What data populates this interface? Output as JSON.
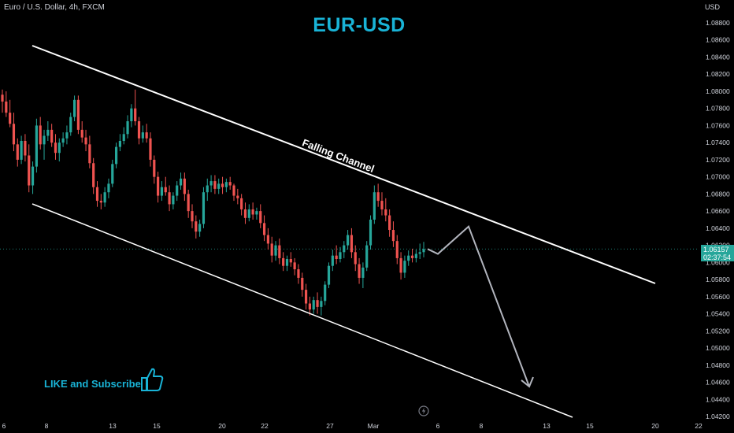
{
  "header": {
    "symbol_text": "Euro / U.S. Dollar, 4h, FXCM",
    "title": "EUR-USD",
    "cta": "LIKE and Subscribe",
    "currency": "USD"
  },
  "price_tag": {
    "price": "1.06157",
    "countdown": "02:37:54"
  },
  "chart_data": {
    "type": "candlestick",
    "title": "EUR-USD",
    "symbol": "Euro / U.S. Dollar, 4h, FXCM",
    "ylabel": "USD",
    "ylim": [
      1.041,
      1.0904
    ],
    "y_ticks": [
      "1.08800",
      "1.08600",
      "1.08400",
      "1.08200",
      "1.08000",
      "1.07800",
      "1.07600",
      "1.07400",
      "1.07200",
      "1.07000",
      "1.06800",
      "1.06600",
      "1.06400",
      "1.06200",
      "1.06000",
      "1.05800",
      "1.05600",
      "1.05400",
      "1.05200",
      "1.05000",
      "1.04800",
      "1.04600",
      "1.04400",
      "1.04200"
    ],
    "x_ticks": [
      "6",
      "8",
      "13",
      "15",
      "20",
      "22",
      "27",
      "Mar",
      "6",
      "8",
      "13",
      "15",
      "20",
      "22"
    ],
    "last_price": 1.06157,
    "colors": {
      "up": "#26a69a",
      "down": "#ef5350",
      "channel": "#ffffff",
      "projection": "#b2b5be"
    },
    "candles": [
      [
        1.0796,
        1.0802,
        1.0775,
        1.0788
      ],
      [
        1.0788,
        1.08,
        1.077,
        1.0775
      ],
      [
        1.0775,
        1.079,
        1.0758,
        1.0762
      ],
      [
        1.0762,
        1.0775,
        1.073,
        1.0738
      ],
      [
        1.0738,
        1.0745,
        1.0712,
        1.072
      ],
      [
        1.072,
        1.0748,
        1.0715,
        1.0742
      ],
      [
        1.0742,
        1.075,
        1.0718,
        1.0725
      ],
      [
        1.0725,
        1.0738,
        1.0682,
        1.069
      ],
      [
        1.069,
        1.0718,
        1.068,
        1.0712
      ],
      [
        1.0712,
        1.0768,
        1.0705,
        1.076
      ],
      [
        1.076,
        1.077,
        1.0732,
        1.0738
      ],
      [
        1.0738,
        1.0755,
        1.072,
        1.0748
      ],
      [
        1.0748,
        1.0765,
        1.0742,
        1.0755
      ],
      [
        1.0755,
        1.0762,
        1.0735,
        1.074
      ],
      [
        1.074,
        1.075,
        1.072,
        1.0728
      ],
      [
        1.0728,
        1.0745,
        1.0718,
        1.074
      ],
      [
        1.074,
        1.0752,
        1.0735,
        1.0745
      ],
      [
        1.0745,
        1.076,
        1.0738,
        1.0752
      ],
      [
        1.0752,
        1.0775,
        1.0748,
        1.077
      ],
      [
        1.077,
        1.0795,
        1.0765,
        1.079
      ],
      [
        1.079,
        1.0795,
        1.075,
        1.0755
      ],
      [
        1.0755,
        1.0765,
        1.074,
        1.0746
      ],
      [
        1.0746,
        1.0755,
        1.073,
        1.0738
      ],
      [
        1.0738,
        1.0748,
        1.071,
        1.0716
      ],
      [
        1.0716,
        1.0722,
        1.068,
        1.0688
      ],
      [
        1.0688,
        1.0695,
        1.0665,
        1.0672
      ],
      [
        1.0672,
        1.068,
        1.0662,
        1.067
      ],
      [
        1.067,
        1.0688,
        1.0665,
        1.0682
      ],
      [
        1.0682,
        1.0698,
        1.0675,
        1.0692
      ],
      [
        1.0692,
        1.072,
        1.0688,
        1.0715
      ],
      [
        1.0715,
        1.074,
        1.071,
        1.0735
      ],
      [
        1.0735,
        1.075,
        1.073,
        1.0742
      ],
      [
        1.0742,
        1.0758,
        1.0738,
        1.075
      ],
      [
        1.075,
        1.0772,
        1.0745,
        1.0765
      ],
      [
        1.0765,
        1.0785,
        1.0758,
        1.078
      ],
      [
        1.078,
        1.0802,
        1.076,
        1.0765
      ],
      [
        1.0765,
        1.077,
        1.0738,
        1.0745
      ],
      [
        1.0745,
        1.076,
        1.074,
        1.0752
      ],
      [
        1.0752,
        1.0762,
        1.074,
        1.0745
      ],
      [
        1.0745,
        1.0752,
        1.0712,
        1.072
      ],
      [
        1.072,
        1.0725,
        1.0692,
        1.07
      ],
      [
        1.07,
        1.0706,
        1.067,
        1.0678
      ],
      [
        1.0678,
        1.0695,
        1.0672,
        1.0688
      ],
      [
        1.0688,
        1.07,
        1.0678,
        1.0682
      ],
      [
        1.0682,
        1.069,
        1.066,
        1.0668
      ],
      [
        1.0668,
        1.0682,
        1.0662,
        1.0678
      ],
      [
        1.0678,
        1.0695,
        1.0672,
        1.069
      ],
      [
        1.069,
        1.0705,
        1.0685,
        1.0698
      ],
      [
        1.0698,
        1.0705,
        1.0672,
        1.068
      ],
      [
        1.068,
        1.0685,
        1.0652,
        1.066
      ],
      [
        1.066,
        1.0668,
        1.064,
        1.0648
      ],
      [
        1.0648,
        1.0655,
        1.0628,
        1.0636
      ],
      [
        1.0636,
        1.065,
        1.063,
        1.0645
      ],
      [
        1.0645,
        1.0688,
        1.064,
        1.0682
      ],
      [
        1.0682,
        1.0698,
        1.0672,
        1.069
      ],
      [
        1.069,
        1.0702,
        1.0682,
        1.0695
      ],
      [
        1.0695,
        1.0702,
        1.068,
        1.0686
      ],
      [
        1.0686,
        1.0698,
        1.068,
        1.0692
      ],
      [
        1.0692,
        1.07,
        1.068,
        1.0688
      ],
      [
        1.0688,
        1.0698,
        1.0682,
        1.0694
      ],
      [
        1.0694,
        1.07,
        1.0685,
        1.069
      ],
      [
        1.069,
        1.0692,
        1.0672,
        1.0678
      ],
      [
        1.0678,
        1.0686,
        1.0668,
        1.0675
      ],
      [
        1.0675,
        1.068,
        1.0655,
        1.0662
      ],
      [
        1.0662,
        1.067,
        1.0645,
        1.0652
      ],
      [
        1.0652,
        1.0668,
        1.0648,
        1.0662
      ],
      [
        1.0662,
        1.067,
        1.065,
        1.0656
      ],
      [
        1.0656,
        1.0664,
        1.065,
        1.066
      ],
      [
        1.066,
        1.0668,
        1.064,
        1.0646
      ],
      [
        1.0646,
        1.0655,
        1.0625,
        1.0632
      ],
      [
        1.0632,
        1.064,
        1.0615,
        1.0622
      ],
      [
        1.0622,
        1.063,
        1.06,
        1.0608
      ],
      [
        1.0608,
        1.0625,
        1.0602,
        1.062
      ],
      [
        1.062,
        1.0628,
        1.0598,
        1.0605
      ],
      [
        1.0605,
        1.0612,
        1.059,
        1.0596
      ],
      [
        1.0596,
        1.0608,
        1.059,
        1.0604
      ],
      [
        1.0604,
        1.0612,
        1.0595,
        1.06
      ],
      [
        1.06,
        1.0605,
        1.0585,
        1.0592
      ],
      [
        1.0592,
        1.0598,
        1.0575,
        1.0582
      ],
      [
        1.0582,
        1.0588,
        1.056,
        1.0568
      ],
      [
        1.0568,
        1.0575,
        1.0545,
        1.0552
      ],
      [
        1.0552,
        1.056,
        1.0538,
        1.0545
      ],
      [
        1.0545,
        1.056,
        1.054,
        1.0556
      ],
      [
        1.0556,
        1.0565,
        1.054,
        1.0548
      ],
      [
        1.0548,
        1.056,
        1.0538,
        1.0555
      ],
      [
        1.0555,
        1.0578,
        1.055,
        1.0574
      ],
      [
        1.0574,
        1.06,
        1.057,
        1.0596
      ],
      [
        1.0596,
        1.0615,
        1.059,
        1.0608
      ],
      [
        1.0608,
        1.062,
        1.0598,
        1.0604
      ],
      [
        1.0604,
        1.0618,
        1.06,
        1.0612
      ],
      [
        1.0612,
        1.0625,
        1.0605,
        1.062
      ],
      [
        1.062,
        1.0638,
        1.0615,
        1.0632
      ],
      [
        1.0632,
        1.064,
        1.0605,
        1.0612
      ],
      [
        1.0612,
        1.062,
        1.059,
        1.0598
      ],
      [
        1.0598,
        1.0605,
        1.0575,
        1.0582
      ],
      [
        1.0582,
        1.06,
        1.057,
        1.0594
      ],
      [
        1.0594,
        1.0625,
        1.059,
        1.062
      ],
      [
        1.062,
        1.0655,
        1.0615,
        1.065
      ],
      [
        1.065,
        1.069,
        1.0645,
        1.0682
      ],
      [
        1.0682,
        1.0692,
        1.0665,
        1.0672
      ],
      [
        1.0672,
        1.0682,
        1.0655,
        1.0662
      ],
      [
        1.0662,
        1.0675,
        1.0648,
        1.0655
      ],
      [
        1.0655,
        1.0662,
        1.063,
        1.0638
      ],
      [
        1.0638,
        1.0648,
        1.0618,
        1.0625
      ],
      [
        1.0625,
        1.0632,
        1.0598,
        1.0605
      ],
      [
        1.0605,
        1.0612,
        1.058,
        1.0588
      ],
      [
        1.0588,
        1.0608,
        1.0582,
        1.0602
      ],
      [
        1.0602,
        1.0614,
        1.0596,
        1.0608
      ],
      [
        1.0608,
        1.0616,
        1.06,
        1.0605
      ],
      [
        1.0605,
        1.0615,
        1.06,
        1.061
      ],
      [
        1.061,
        1.0622,
        1.0604,
        1.0612
      ],
      [
        1.0612,
        1.0624,
        1.0606,
        1.06157
      ]
    ],
    "projection_path": [
      [
        1.06157
      ],
      [
        1.061
      ],
      [
        1.0642
      ],
      [
        1.0455
      ]
    ],
    "channel_label": "Falling Channel"
  },
  "annotation": {
    "channel_label": "Falling Channel"
  }
}
